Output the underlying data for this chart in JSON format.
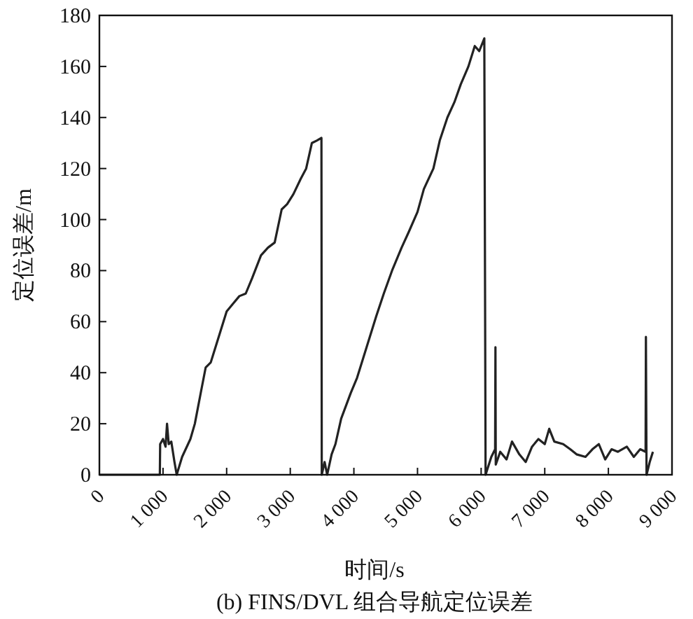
{
  "chart_data": {
    "type": "line",
    "title": "(b) FINS/DVL 组合导航定位误差",
    "xlabel": "时间/s",
    "ylabel": "定位误差/m",
    "xlim": [
      0,
      9000
    ],
    "ylim": [
      0,
      180
    ],
    "xticks": [
      0,
      {
        "value": 1000,
        "label": "1 000"
      },
      {
        "value": 2000,
        "label": "2 000"
      },
      {
        "value": 3000,
        "label": "3 000"
      },
      {
        "value": 4000,
        "label": "4 000"
      },
      {
        "value": 5000,
        "label": "5 000"
      },
      {
        "value": 6000,
        "label": "6 000"
      },
      {
        "value": 7000,
        "label": "7 000"
      },
      {
        "value": 8000,
        "label": "8 000"
      },
      {
        "value": 9000,
        "label": "9 000"
      }
    ],
    "yticks": [
      0,
      20,
      40,
      60,
      80,
      100,
      120,
      140,
      160,
      180
    ],
    "grid": false,
    "marker": "none",
    "line_style": "solid",
    "series": [
      {
        "color": "#222222",
        "x": [
          0,
          950,
          955,
          1000,
          1040,
          1063,
          1090,
          1130,
          1180,
          1215,
          1300,
          1430,
          1500,
          1600,
          1670,
          1750,
          1850,
          2000,
          2100,
          2200,
          2300,
          2400,
          2540,
          2650,
          2755,
          2865,
          2950,
          3050,
          3165,
          3250,
          3340,
          3420,
          3490,
          3495,
          3540,
          3580,
          3650,
          3710,
          3800,
          3950,
          4050,
          4200,
          4350,
          4470,
          4600,
          4750,
          4860,
          5000,
          5100,
          5250,
          5350,
          5470,
          5580,
          5680,
          5800,
          5900,
          5970,
          6050,
          6070,
          6160,
          6220,
          6225,
          6230,
          6300,
          6400,
          6485,
          6600,
          6700,
          6800,
          6900,
          7000,
          7070,
          7150,
          7290,
          7400,
          7500,
          7640,
          7750,
          7850,
          7950,
          8050,
          8150,
          8290,
          8400,
          8500,
          8585,
          8590,
          8600,
          8650,
          8700
        ],
        "values": [
          0,
          0,
          12,
          14,
          11,
          20,
          12,
          13,
          5,
          0,
          7,
          14,
          20,
          33,
          42,
          44,
          52,
          64,
          67,
          70,
          71,
          77,
          86,
          89,
          91,
          104,
          106,
          110,
          116,
          120,
          130,
          131,
          132,
          0,
          5,
          0,
          8,
          12,
          22,
          32,
          38,
          50,
          62,
          71,
          80,
          89,
          95,
          103,
          112,
          120,
          131,
          140,
          146,
          153,
          160,
          168,
          166,
          171,
          0,
          7,
          10,
          50,
          4,
          9,
          6,
          13,
          8,
          5,
          11,
          14,
          12,
          18,
          13,
          12,
          10,
          8,
          7,
          10,
          12,
          6,
          10,
          9,
          11,
          7,
          10,
          9,
          54,
          0,
          5,
          9
        ]
      }
    ]
  }
}
